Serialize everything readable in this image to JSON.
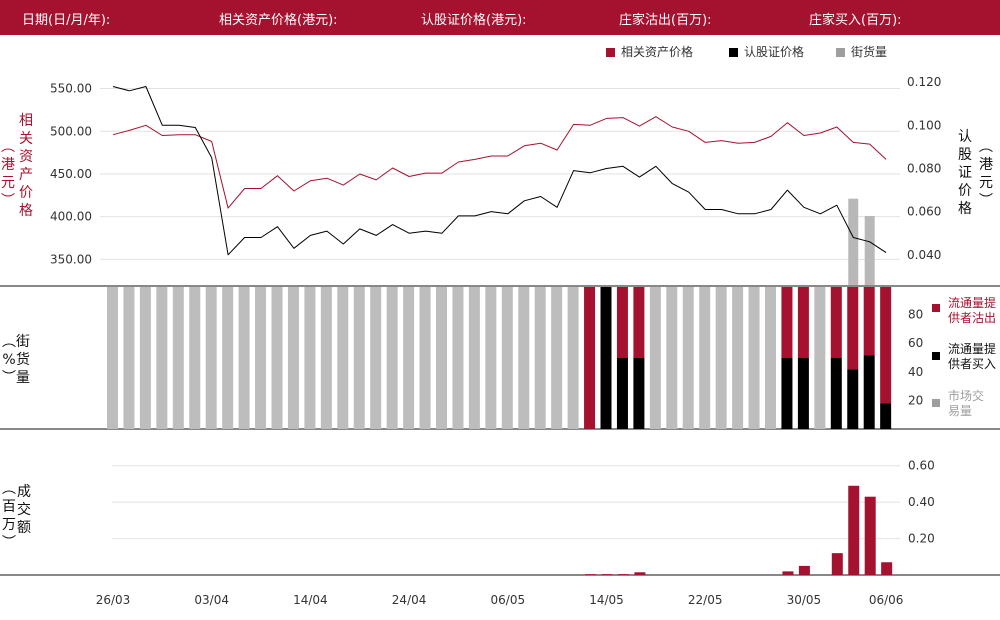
{
  "header": {
    "date": "日期(日/月/年):",
    "underlying_price": "相关资产价格(港元):",
    "warrant_price": "认股证价格(港元):",
    "issuer_sell": "庄家沽出(百万):",
    "issuer_buy": "庄家买入(百万):"
  },
  "legend_top": [
    {
      "label": "相关资产价格",
      "color": "#a5122f"
    },
    {
      "label": "认股证价格",
      "color": "#000000"
    },
    {
      "label": "街货量",
      "color": "#9e9e9e"
    }
  ],
  "legend_mid": [
    {
      "label": "流通量提供者沽出",
      "color": "#a5122f"
    },
    {
      "label": "流通量提供者买入",
      "color": "#000000"
    },
    {
      "label": "市场交易量",
      "color": "#9e9e9e"
    }
  ],
  "axis_labels": {
    "left_top": "相关资产价格",
    "left_top_unit": "港元",
    "right_top": "认股证价格",
    "right_top_unit": "港元",
    "mid_left": "街货量",
    "mid_left_unit": "%",
    "bottom_left": "成交额",
    "bottom_left_unit": "百万"
  },
  "chart_data": {
    "type": "line",
    "x_labels": [
      "26/03",
      "03/04",
      "14/04",
      "24/04",
      "06/05",
      "14/05",
      "22/05",
      "30/05",
      "06/06"
    ],
    "x_label_index": [
      0,
      6,
      12,
      18,
      24,
      30,
      36,
      42,
      47
    ],
    "n": 48,
    "price_axis": {
      "ticks": [
        "550.00",
        "500.00",
        "450.00",
        "400.00",
        "350.00"
      ],
      "min": 320,
      "max": 560
    },
    "warrant_axis": {
      "ticks": [
        "0.120",
        "0.100",
        "0.080",
        "0.060",
        "0.040"
      ],
      "min": 0.026,
      "max": 0.121
    },
    "series": [
      {
        "name": "相关资产价格",
        "color": "#a5122f",
        "values": [
          496,
          501,
          507,
          495,
          496,
          496,
          488,
          410,
          433,
          433,
          448,
          430,
          442,
          445,
          437,
          450,
          443,
          457,
          447,
          451,
          451,
          464,
          467,
          471,
          471,
          483,
          486,
          478,
          508,
          507,
          515,
          516,
          506,
          517,
          505,
          500,
          487,
          489,
          486,
          487,
          494,
          510,
          495,
          498,
          505,
          487,
          485,
          467
        ]
      },
      {
        "name": "认股证价格",
        "color": "#000000",
        "values": [
          0.118,
          0.116,
          0.118,
          0.1,
          0.1,
          0.099,
          0.085,
          0.04,
          0.048,
          0.048,
          0.053,
          0.043,
          0.049,
          0.051,
          0.045,
          0.052,
          0.049,
          0.054,
          0.05,
          0.051,
          0.05,
          0.058,
          0.058,
          0.06,
          0.059,
          0.065,
          0.067,
          0.062,
          0.079,
          0.078,
          0.08,
          0.081,
          0.076,
          0.081,
          0.073,
          0.069,
          0.061,
          0.061,
          0.059,
          0.059,
          0.061,
          0.07,
          0.062,
          0.059,
          0.063,
          0.048,
          0.046,
          0.041
        ]
      }
    ],
    "street_stock_top": {
      "values": [
        null,
        null,
        null,
        null,
        null,
        null,
        null,
        null,
        null,
        null,
        null,
        null,
        null,
        null,
        null,
        null,
        null,
        null,
        null,
        null,
        null,
        null,
        null,
        null,
        null,
        null,
        null,
        null,
        null,
        null,
        null,
        null,
        null,
        null,
        null,
        null,
        null,
        null,
        null,
        null,
        null,
        null,
        null,
        null,
        null,
        0.066,
        0.058,
        null
      ]
    },
    "volume_axis": {
      "ticks": [
        "80",
        "60",
        "40",
        "20"
      ],
      "min": 0,
      "max": 100
    },
    "volume_composition": {
      "categories_count": 48,
      "types": [
        "gray",
        "gray",
        "gray",
        "gray",
        "gray",
        "gray",
        "gray",
        "gray",
        "gray",
        "gray",
        "gray",
        "gray",
        "gray",
        "gray",
        "gray",
        "gray",
        "gray",
        "gray",
        "gray",
        "gray",
        "gray",
        "gray",
        "gray",
        "gray",
        "gray",
        "gray",
        "gray",
        "gray",
        "gray",
        "red",
        "black",
        "mix",
        "mix",
        "gray",
        "gray",
        "gray",
        "gray",
        "gray",
        "gray",
        "gray",
        "gray",
        "mix",
        "mix",
        "gray",
        "mix",
        "mix",
        "mix",
        "mix"
      ],
      "red_pct": [
        0,
        0,
        0,
        0,
        0,
        0,
        0,
        0,
        0,
        0,
        0,
        0,
        0,
        0,
        0,
        0,
        0,
        0,
        0,
        0,
        0,
        0,
        0,
        0,
        0,
        0,
        0,
        0,
        0,
        100,
        0,
        50,
        50,
        0,
        0,
        0,
        0,
        0,
        0,
        0,
        0,
        50,
        50,
        0,
        50,
        58,
        48,
        82
      ]
    },
    "turnover_axis": {
      "ticks": [
        "0.60",
        "0.40",
        "0.20"
      ],
      "min": 0,
      "max": 0.67
    },
    "turnover": [
      0,
      0,
      0,
      0,
      0,
      0,
      0,
      0,
      0,
      0,
      0,
      0,
      0,
      0,
      0,
      0,
      0,
      0,
      0,
      0,
      0,
      0,
      0,
      0,
      0,
      0,
      0,
      0,
      0,
      0.005,
      0.005,
      0.005,
      0.015,
      0,
      0,
      0,
      0,
      0,
      0,
      0,
      0,
      0.02,
      0.05,
      0,
      0.12,
      0.49,
      0.43,
      0.07
    ]
  }
}
